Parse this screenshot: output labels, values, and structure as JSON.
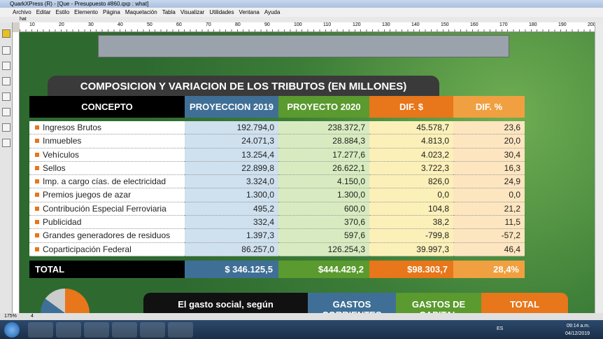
{
  "window": {
    "title": "QuarkXPress (R) - [Que - Presupuesto #860.qxp : what]",
    "menu": [
      "Archivo",
      "Editar",
      "Estilo",
      "Elemento",
      "Página",
      "Maquetación",
      "Tabla",
      "Visualizar",
      "Utilidades",
      "Ventana",
      "Ayuda"
    ],
    "tab": "hat",
    "ruler": [
      "10",
      "20",
      "30",
      "40",
      "50",
      "60",
      "70",
      "80",
      "90",
      "100",
      "110",
      "120",
      "130",
      "140",
      "150",
      "160",
      "170",
      "180",
      "190",
      "200"
    ]
  },
  "table": {
    "title": "COMPOSICION Y VARIACION DE LOS TRIBUTOS (EN MILLONES)",
    "headers": [
      "CONCEPTO",
      "PROYECCION 2019",
      "PROYECTO 2020",
      "DIF. $",
      "DIF. %"
    ],
    "rows": [
      [
        "Ingresos Brutos",
        "192.794,0",
        "238.372,7",
        "45.578,7",
        "23,6"
      ],
      [
        "Inmuebles",
        "24.071,3",
        "28.884,3",
        "4.813,0",
        "20,0"
      ],
      [
        "Vehículos",
        "13.254,4",
        "17.277,6",
        "4.023,2",
        "30,4"
      ],
      [
        "Sellos",
        "22.899,8",
        "26.622,1",
        "3.722,3",
        "16,3"
      ],
      [
        "Imp. a cargo cías. de electricidad",
        "3.324,0",
        "4.150,0",
        "826,0",
        "24,9"
      ],
      [
        "Premios juegos de azar",
        "1.300,0",
        "1.300,0",
        "0,0",
        "0,0"
      ],
      [
        "Contribución Especial Ferroviaria",
        "495,2",
        "600,0",
        "104,8",
        "21,2"
      ],
      [
        "Publicidad",
        "332,4",
        "370,6",
        "38,2",
        "11,5"
      ],
      [
        "Grandes generadores de residuos",
        "1.397,3",
        "597,6",
        "-799,8",
        "-57,2"
      ],
      [
        "Coparticipación Federal",
        "86.257,0",
        "126.254,3",
        "39.997,3",
        "46,4"
      ]
    ],
    "total": [
      "TOTAL",
      "$ 346.125,5",
      "$444.429,2",
      "$98.303,7",
      "28,4%"
    ]
  },
  "next_table": {
    "title": "El gasto social, según",
    "headers": [
      "GASTOS CORRIENTES",
      "GASTOS DE CAPITAL",
      "TOTAL"
    ]
  },
  "status": {
    "zoom": "175%",
    "page": "4"
  },
  "taskbar": {
    "lang": "ES",
    "time": "09:14 a.m.",
    "date": "04/12/2019"
  }
}
